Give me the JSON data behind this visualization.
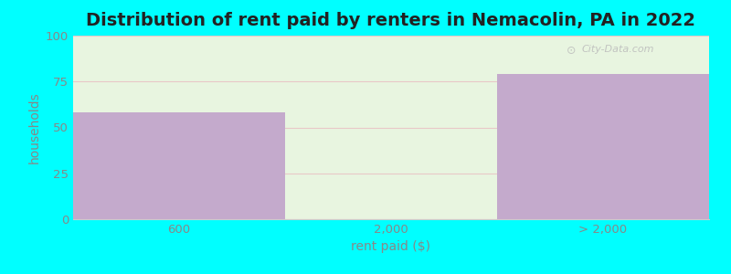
{
  "title": "Distribution of rent paid by renters in Nemacolin, PA in 2022",
  "categories": [
    "600",
    "2,000",
    "> 2,000"
  ],
  "values": [
    58,
    0,
    79
  ],
  "bar_color": "#C4AACC",
  "ylabel": "households",
  "xlabel": "rent paid ($)",
  "ylim": [
    0,
    100
  ],
  "yticks": [
    0,
    25,
    50,
    75,
    100
  ],
  "background_outer": "#00FFFF",
  "background_inner_color1": "#E8F5E0",
  "background_inner_color2": "#FFFFFF",
  "title_fontsize": 14,
  "axis_label_fontsize": 10,
  "tick_fontsize": 9.5,
  "watermark": "City-Data.com",
  "grid_color": "#E8C8C8",
  "bin_edges": [
    0,
    1,
    2,
    3
  ],
  "bar_width": 1.0
}
